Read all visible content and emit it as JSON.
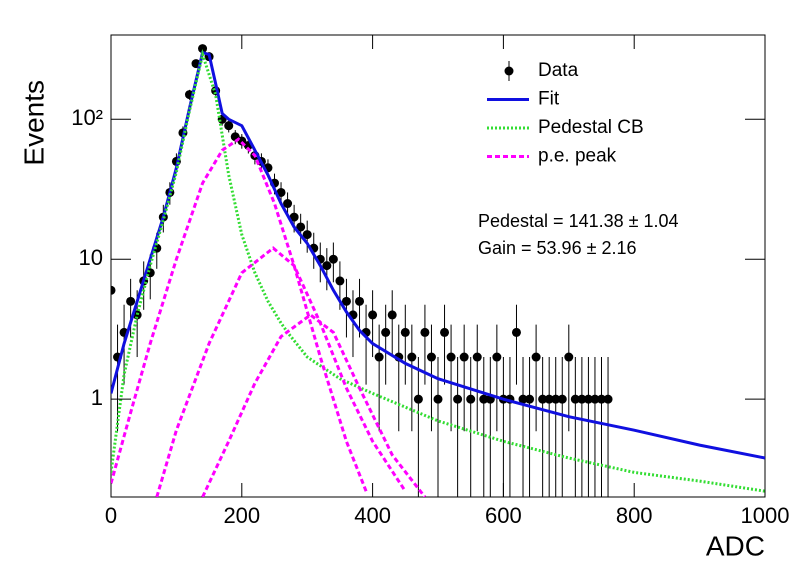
{
  "chart_data": {
    "type": "scatter",
    "log_y": true,
    "x_label": "ADC",
    "y_label": "Events",
    "xlim": [
      0,
      1000
    ],
    "xticks": [
      0,
      200,
      400,
      600,
      800,
      1000
    ],
    "ylim": [
      0.2,
      400
    ],
    "yticks": [
      1,
      10,
      {
        "value": 100,
        "label": "10²"
      }
    ],
    "legend": "upper right",
    "annotations": [
      "Pedestal = 141.38 ± 1.04",
      "Gain = 53.96 ± 2.16"
    ],
    "series": [
      {
        "name": "Data",
        "style": "points",
        "color": "#000000",
        "x": [
          0,
          10,
          20,
          30,
          40,
          50,
          60,
          70,
          80,
          90,
          100,
          110,
          120,
          130,
          140,
          150,
          160,
          170,
          180,
          190,
          200,
          210,
          220,
          230,
          240,
          250,
          260,
          270,
          280,
          290,
          300,
          310,
          320,
          330,
          340,
          350,
          360,
          370,
          380,
          390,
          400,
          410,
          420,
          430,
          440,
          450,
          460,
          470,
          480,
          490,
          500,
          510,
          520,
          530,
          540,
          550,
          560,
          570,
          580,
          590,
          600,
          610,
          620,
          630,
          640,
          650,
          660,
          670,
          680,
          690,
          700,
          710,
          720,
          730,
          740,
          750,
          760
        ],
        "values": [
          6,
          2,
          3,
          5,
          4,
          7,
          8,
          12,
          20,
          30,
          50,
          80,
          150,
          250,
          320,
          280,
          160,
          100,
          90,
          75,
          70,
          65,
          55,
          50,
          45,
          35,
          30,
          25,
          20,
          17,
          15,
          12,
          10,
          9,
          10,
          7,
          5,
          4,
          5,
          3,
          4,
          2,
          3,
          4,
          2,
          3,
          2,
          1,
          3,
          2,
          1,
          3,
          2,
          1,
          2,
          1,
          2,
          1,
          1,
          2,
          1,
          1,
          3,
          1,
          1,
          2,
          1,
          1,
          1,
          1,
          2,
          1,
          1,
          1,
          1,
          1,
          1
        ],
        "errors": [
          2.45,
          1.41,
          1.73,
          2.24,
          2,
          2.65,
          2.83,
          3.46,
          4.47,
          5.48,
          7.07,
          8.94,
          12.25,
          15.81,
          17.89,
          16.73,
          12.65,
          10,
          9.49,
          8.66,
          8.37,
          8.06,
          7.42,
          7.07,
          6.71,
          5.92,
          5.48,
          5,
          4.47,
          4.12,
          3.87,
          3.46,
          3.16,
          3,
          3.16,
          2.65,
          2.24,
          2,
          2.24,
          1.73,
          2,
          1.41,
          1.73,
          2,
          1.41,
          1.73,
          1.41,
          1,
          1.73,
          1.41,
          1,
          1.73,
          1.41,
          1,
          1.41,
          1,
          1.41,
          1,
          1,
          1.41,
          1,
          1,
          1.73,
          1,
          1,
          1.41,
          1,
          1,
          1,
          1,
          1.41,
          1,
          1,
          1,
          1,
          1,
          1
        ]
      },
      {
        "name": "Fit",
        "style": "solid",
        "color": "#1010e0",
        "x": [
          0,
          20,
          40,
          60,
          80,
          100,
          120,
          140,
          150,
          160,
          170,
          180,
          200,
          220,
          240,
          260,
          280,
          300,
          320,
          340,
          360,
          380,
          400,
          450,
          500,
          600,
          700,
          800,
          900,
          1000
        ],
        "values": [
          1.1,
          2.5,
          5,
          10,
          20,
          45,
          120,
          300,
          290,
          180,
          110,
          100,
          90,
          60,
          40,
          25,
          17,
          13,
          9,
          6,
          4.2,
          3.1,
          2.5,
          1.8,
          1.4,
          1.0,
          0.75,
          0.6,
          0.47,
          0.38
        ]
      },
      {
        "name": "Pedestal CB",
        "style": "dotted",
        "color": "#33dd33",
        "x": [
          0,
          20,
          40,
          60,
          80,
          100,
          120,
          140,
          160,
          180,
          200,
          220,
          240,
          260,
          270,
          300,
          350,
          400,
          500,
          600,
          700,
          800,
          900,
          1000
        ],
        "values": [
          0.3,
          1.5,
          4,
          9,
          19,
          42,
          115,
          290,
          150,
          40,
          15,
          8,
          5,
          3.5,
          3,
          2,
          1.4,
          1.1,
          0.7,
          0.5,
          0.38,
          0.3,
          0.26,
          0.22
        ]
      },
      {
        "name": "p.e. peak",
        "style": "dashed",
        "color": "#ff00ff",
        "x": [
          0,
          30,
          60,
          100,
          140,
          170,
          195,
          220,
          250,
          280,
          320,
          360,
          390,
          null,
          70,
          100,
          150,
          200,
          248,
          280,
          320,
          360,
          400,
          450,
          null,
          140,
          180,
          220,
          260,
          305,
          340,
          380,
          430,
          480
        ],
        "values": [
          0.25,
          0.8,
          2.5,
          10,
          35,
          60,
          72,
          55,
          25,
          9,
          2,
          0.5,
          0.22,
          null,
          0.2,
          0.6,
          2.5,
          8,
          12,
          9,
          3.5,
          1.2,
          0.5,
          0.22,
          null,
          0.2,
          0.5,
          1.3,
          2.8,
          4,
          3,
          1.2,
          0.4,
          0.2
        ]
      }
    ]
  }
}
